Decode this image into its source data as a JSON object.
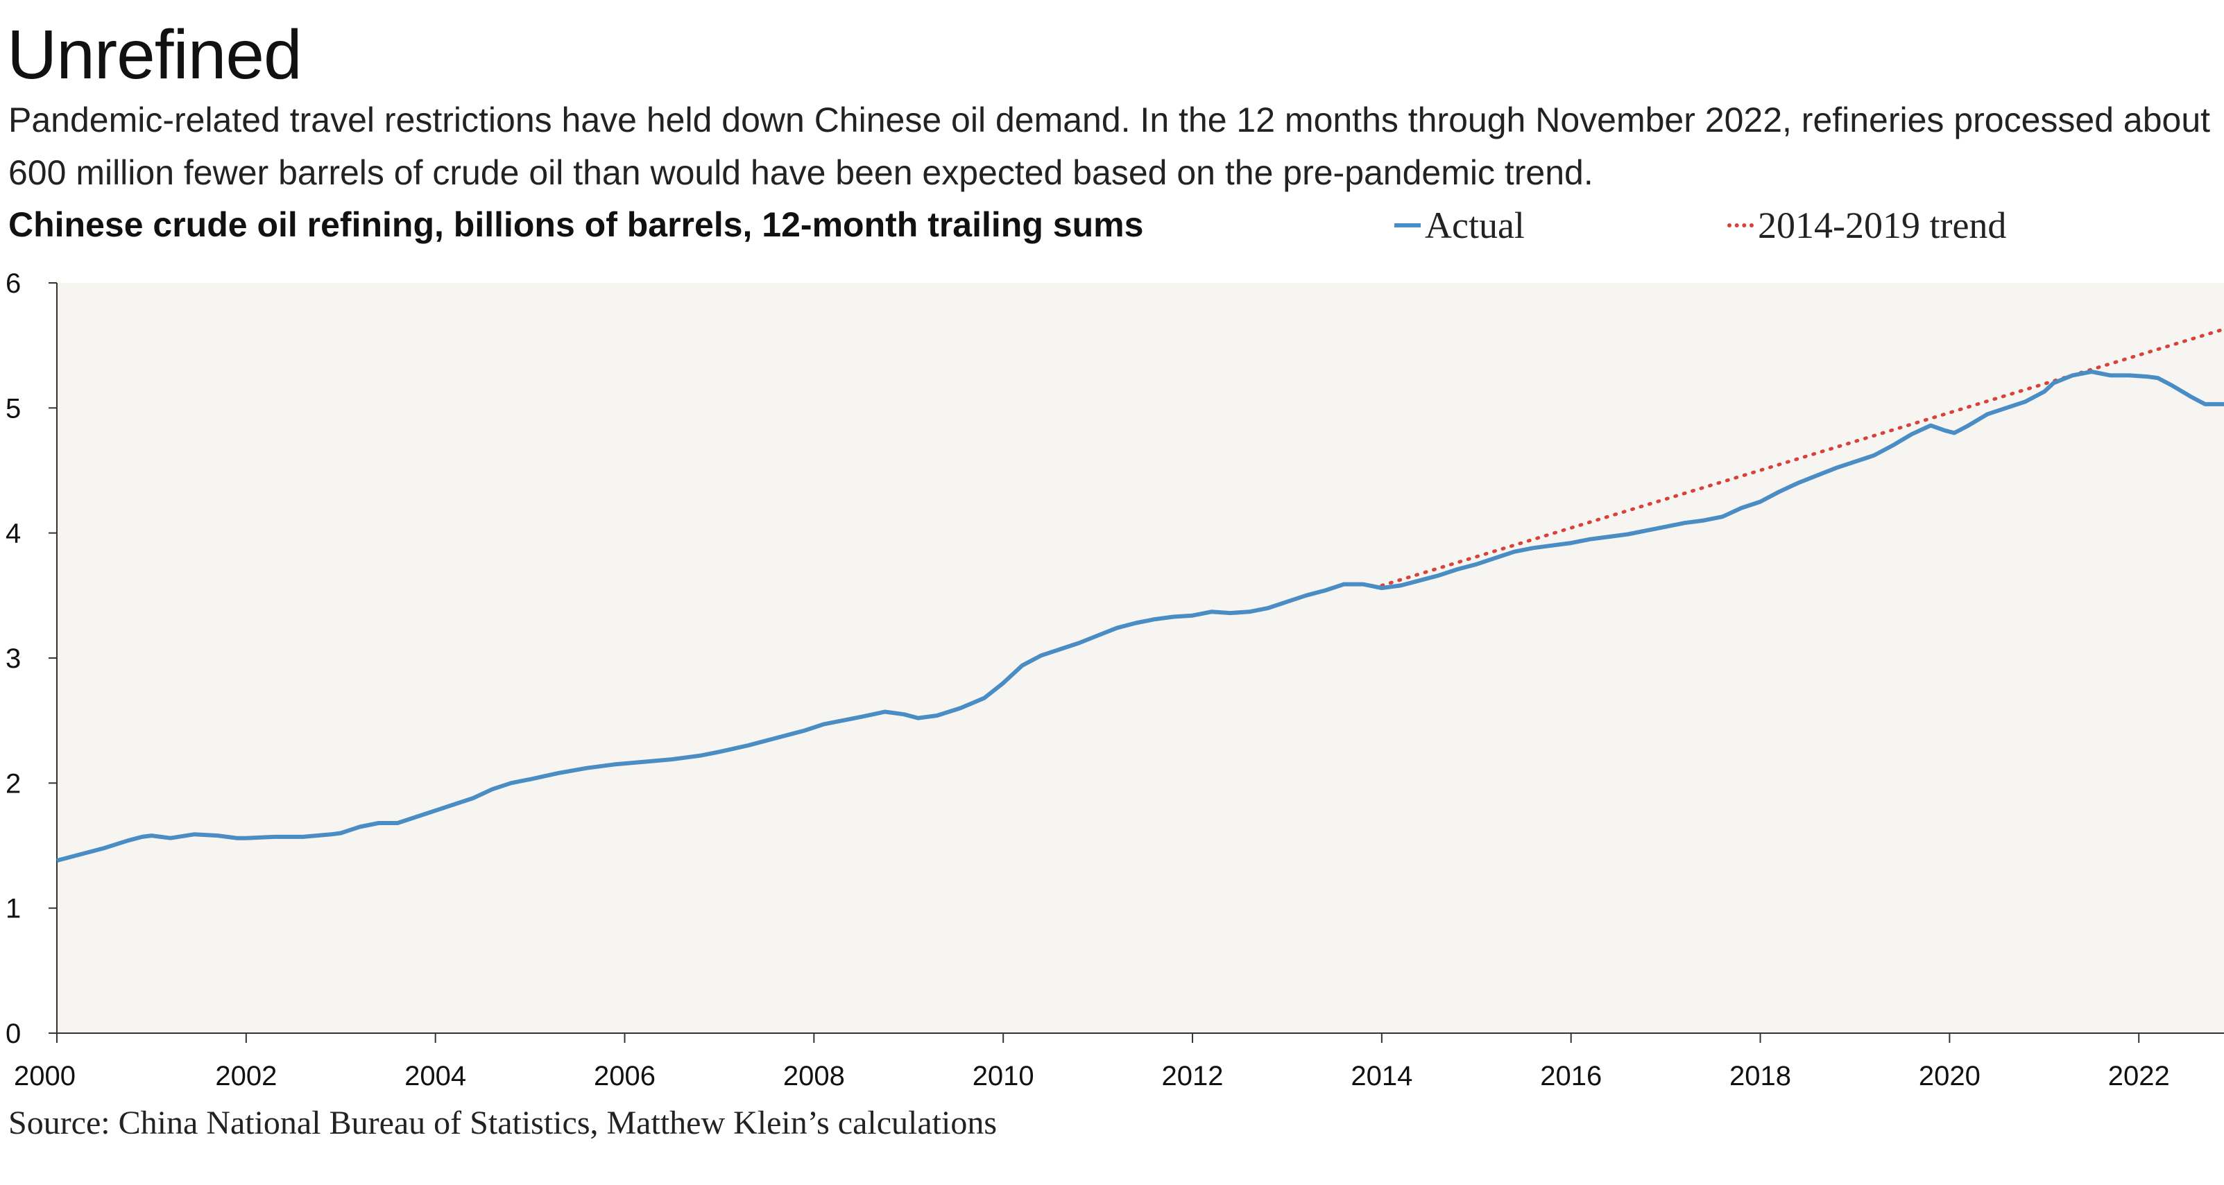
{
  "title": "Unrefined",
  "subtitle": "Pandemic-related travel restrictions have held down Chinese oil demand. In the 12 months through November 2022, refineries processed about 600 million fewer barrels of crude oil than would have been expected based on the pre-pandemic trend.",
  "source": "Source: China National Bureau of Statistics, Matthew Klein’s calculations",
  "colors": {
    "actual": "#4a8cc4",
    "trend": "#d9413b",
    "plot_bg": "#f6f5f1"
  },
  "chart_data": {
    "type": "line",
    "title": "Chinese crude oil refining, billions of barrels, 12-month trailing sums",
    "xlabel": "",
    "ylabel": "",
    "xlim": [
      2000,
      2022.9
    ],
    "ylim": [
      0,
      6
    ],
    "x_ticks": [
      "2000",
      "2002",
      "2004",
      "2006",
      "2008",
      "2010",
      "2012",
      "2014",
      "2016",
      "2018",
      "2020",
      "2022"
    ],
    "y_ticks": [
      "0",
      "1",
      "2",
      "3",
      "4",
      "5",
      "6"
    ],
    "legend_position": "top",
    "series": [
      {
        "name": "Actual",
        "style": "solid",
        "points": [
          [
            2000.0,
            1.38
          ],
          [
            2000.25,
            1.43
          ],
          [
            2000.5,
            1.48
          ],
          [
            2000.75,
            1.54
          ],
          [
            2000.9,
            1.57
          ],
          [
            2001.0,
            1.58
          ],
          [
            2001.2,
            1.56
          ],
          [
            2001.45,
            1.59
          ],
          [
            2001.7,
            1.58
          ],
          [
            2001.9,
            1.56
          ],
          [
            2002.0,
            1.56
          ],
          [
            2002.3,
            1.57
          ],
          [
            2002.6,
            1.57
          ],
          [
            2002.9,
            1.59
          ],
          [
            2003.0,
            1.6
          ],
          [
            2003.2,
            1.65
          ],
          [
            2003.4,
            1.68
          ],
          [
            2003.6,
            1.68
          ],
          [
            2003.8,
            1.73
          ],
          [
            2004.0,
            1.78
          ],
          [
            2004.2,
            1.83
          ],
          [
            2004.4,
            1.88
          ],
          [
            2004.6,
            1.95
          ],
          [
            2004.8,
            2.0
          ],
          [
            2005.0,
            2.03
          ],
          [
            2005.3,
            2.08
          ],
          [
            2005.6,
            2.12
          ],
          [
            2005.9,
            2.15
          ],
          [
            2006.2,
            2.17
          ],
          [
            2006.5,
            2.19
          ],
          [
            2006.8,
            2.22
          ],
          [
            2007.0,
            2.25
          ],
          [
            2007.3,
            2.3
          ],
          [
            2007.6,
            2.36
          ],
          [
            2007.9,
            2.42
          ],
          [
            2008.1,
            2.47
          ],
          [
            2008.3,
            2.5
          ],
          [
            2008.5,
            2.53
          ],
          [
            2008.75,
            2.57
          ],
          [
            2008.95,
            2.55
          ],
          [
            2009.1,
            2.52
          ],
          [
            2009.3,
            2.54
          ],
          [
            2009.55,
            2.6
          ],
          [
            2009.8,
            2.68
          ],
          [
            2010.0,
            2.8
          ],
          [
            2010.2,
            2.94
          ],
          [
            2010.4,
            3.02
          ],
          [
            2010.6,
            3.07
          ],
          [
            2010.8,
            3.12
          ],
          [
            2011.0,
            3.18
          ],
          [
            2011.2,
            3.24
          ],
          [
            2011.4,
            3.28
          ],
          [
            2011.6,
            3.31
          ],
          [
            2011.8,
            3.33
          ],
          [
            2012.0,
            3.34
          ],
          [
            2012.2,
            3.37
          ],
          [
            2012.4,
            3.36
          ],
          [
            2012.6,
            3.37
          ],
          [
            2012.8,
            3.4
          ],
          [
            2013.0,
            3.45
          ],
          [
            2013.2,
            3.5
          ],
          [
            2013.4,
            3.54
          ],
          [
            2013.6,
            3.59
          ],
          [
            2013.8,
            3.59
          ],
          [
            2014.0,
            3.56
          ],
          [
            2014.2,
            3.58
          ],
          [
            2014.4,
            3.62
          ],
          [
            2014.6,
            3.66
          ],
          [
            2014.8,
            3.71
          ],
          [
            2015.0,
            3.75
          ],
          [
            2015.2,
            3.8
          ],
          [
            2015.4,
            3.85
          ],
          [
            2015.6,
            3.88
          ],
          [
            2015.8,
            3.9
          ],
          [
            2016.0,
            3.92
          ],
          [
            2016.2,
            3.95
          ],
          [
            2016.4,
            3.97
          ],
          [
            2016.6,
            3.99
          ],
          [
            2016.8,
            4.02
          ],
          [
            2017.0,
            4.05
          ],
          [
            2017.2,
            4.08
          ],
          [
            2017.4,
            4.1
          ],
          [
            2017.6,
            4.13
          ],
          [
            2017.8,
            4.2
          ],
          [
            2018.0,
            4.25
          ],
          [
            2018.2,
            4.33
          ],
          [
            2018.4,
            4.4
          ],
          [
            2018.6,
            4.46
          ],
          [
            2018.8,
            4.52
          ],
          [
            2019.0,
            4.57
          ],
          [
            2019.2,
            4.62
          ],
          [
            2019.4,
            4.7
          ],
          [
            2019.6,
            4.79
          ],
          [
            2019.8,
            4.86
          ],
          [
            2019.95,
            4.82
          ],
          [
            2020.05,
            4.8
          ],
          [
            2020.2,
            4.86
          ],
          [
            2020.4,
            4.95
          ],
          [
            2020.6,
            5.0
          ],
          [
            2020.8,
            5.05
          ],
          [
            2021.0,
            5.13
          ],
          [
            2021.1,
            5.2
          ],
          [
            2021.3,
            5.26
          ],
          [
            2021.5,
            5.29
          ],
          [
            2021.7,
            5.26
          ],
          [
            2021.9,
            5.26
          ],
          [
            2022.1,
            5.25
          ],
          [
            2022.2,
            5.24
          ],
          [
            2022.35,
            5.18
          ],
          [
            2022.55,
            5.09
          ],
          [
            2022.7,
            5.03
          ],
          [
            2022.9,
            5.03
          ]
        ]
      },
      {
        "name": "2014-2019 trend",
        "style": "dotted",
        "points": [
          [
            2014.0,
            3.58
          ],
          [
            2022.9,
            5.63
          ]
        ]
      }
    ]
  }
}
